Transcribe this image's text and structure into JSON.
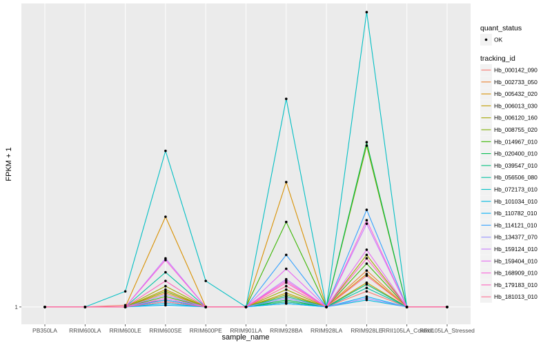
{
  "chart_data": {
    "type": "line",
    "title": "",
    "xlabel": "sample_name",
    "ylabel": "FPKM + 1",
    "y_tick_labels": [
      "1"
    ],
    "ylim": [
      0.9,
      2.75
    ],
    "grid": true,
    "categories": [
      "PB350LA",
      "RRIM600LA",
      "RRIM600LE",
      "RRIM600SE",
      "RRIM600PE",
      "RRIM901LA",
      "RRIM928BA",
      "RRIM928LA",
      "RRIM928LE",
      "RRII105LA_Control",
      "RRII105LA_Stressed"
    ],
    "legend_position": "right",
    "legend_shape": {
      "title": "quant_status",
      "entries": [
        {
          "label": "OK",
          "shape": "point",
          "color": "#000000"
        }
      ]
    },
    "legend_color": {
      "title": "tracking_id",
      "entries": [
        {
          "label": "Hb_000142_090",
          "color": "#F8766D"
        },
        {
          "label": "Hb_002733_050",
          "color": "#EA8331"
        },
        {
          "label": "Hb_005432_020",
          "color": "#D89000"
        },
        {
          "label": "Hb_006013_030",
          "color": "#C09B00"
        },
        {
          "label": "Hb_006120_160",
          "color": "#A3A500"
        },
        {
          "label": "Hb_008755_020",
          "color": "#7CAE00"
        },
        {
          "label": "Hb_014967_010",
          "color": "#39B600"
        },
        {
          "label": "Hb_020400_010",
          "color": "#00BB4E"
        },
        {
          "label": "Hb_039547_010",
          "color": "#00BF7D"
        },
        {
          "label": "Hb_056506_080",
          "color": "#00C1A3"
        },
        {
          "label": "Hb_072173_010",
          "color": "#00BFC4"
        },
        {
          "label": "Hb_101034_010",
          "color": "#00BAE0"
        },
        {
          "label": "Hb_110782_010",
          "color": "#00B0F6"
        },
        {
          "label": "Hb_114121_010",
          "color": "#35A2FF"
        },
        {
          "label": "Hb_134377_070",
          "color": "#9590FF"
        },
        {
          "label": "Hb_159124_010",
          "color": "#C77CFF"
        },
        {
          "label": "Hb_159404_010",
          "color": "#E76BF3"
        },
        {
          "label": "Hb_168909_010",
          "color": "#FA62DB"
        },
        {
          "label": "Hb_179183_010",
          "color": "#FF62BC"
        },
        {
          "label": "Hb_181013_010",
          "color": "#FF6C91"
        }
      ]
    },
    "series": [
      {
        "values": [
          1,
          1,
          1.01,
          1.04,
          1,
          1,
          1.03,
          1,
          1.09,
          1.0,
          1
        ]
      },
      {
        "values": [
          1,
          1,
          1.0,
          1.08,
          1,
          1,
          1.06,
          1,
          1.21,
          1.0,
          1
        ]
      },
      {
        "values": [
          1,
          1,
          1.0,
          1.52,
          1,
          1,
          1.72,
          1,
          1.19,
          1.0,
          1
        ]
      },
      {
        "values": [
          1,
          1,
          1.0,
          1.1,
          1,
          1,
          1.08,
          1,
          1.14,
          1.0,
          1
        ]
      },
      {
        "values": [
          1,
          1,
          1.0,
          1.12,
          1,
          1,
          1.1,
          1,
          1.3,
          1.0,
          1
        ]
      },
      {
        "values": [
          1,
          1,
          1.0,
          1.09,
          1,
          1,
          1.07,
          1,
          1.93,
          1.0,
          1
        ]
      },
      {
        "values": [
          1,
          1,
          1.0,
          1.06,
          1,
          1,
          1.49,
          1,
          1.25,
          1.0,
          1
        ]
      },
      {
        "values": [
          1,
          1,
          1.0,
          1.04,
          1,
          1,
          1.04,
          1,
          1.95,
          1.0,
          1
        ]
      },
      {
        "values": [
          1,
          1,
          1.0,
          1.03,
          1,
          1,
          1.03,
          1,
          1.13,
          1.0,
          1
        ]
      },
      {
        "values": [
          1,
          1,
          1.0,
          1.2,
          1,
          1,
          1.06,
          1,
          1.11,
          1.0,
          1
        ]
      },
      {
        "values": [
          1,
          1,
          1.09,
          1.9,
          1.15,
          1,
          2.2,
          1,
          2.7,
          1.0,
          1
        ]
      },
      {
        "values": [
          1,
          1,
          1.0,
          1.02,
          1,
          1,
          1.02,
          1,
          1.04,
          1.0,
          1
        ]
      },
      {
        "values": [
          1,
          1,
          1.0,
          1.01,
          1,
          1,
          1.02,
          1,
          1.06,
          1.0,
          1
        ]
      },
      {
        "values": [
          1,
          1,
          1.0,
          1.04,
          1,
          1,
          1.3,
          1,
          1.56,
          1.0,
          1
        ]
      },
      {
        "values": [
          1,
          1,
          1.0,
          1.07,
          1,
          1,
          1.05,
          1,
          1.05,
          1.0,
          1
        ]
      },
      {
        "values": [
          1,
          1,
          1.0,
          1.28,
          1,
          1,
          1.16,
          1,
          1.48,
          1.0,
          1
        ]
      },
      {
        "values": [
          1,
          1,
          1.0,
          1.05,
          1,
          1,
          1.22,
          1,
          1.33,
          1.0,
          1
        ]
      },
      {
        "values": [
          1,
          1,
          1.0,
          1.27,
          1,
          1,
          1.15,
          1,
          1.5,
          1.0,
          1
        ]
      },
      {
        "values": [
          1,
          1,
          1.0,
          1.15,
          1,
          1,
          1.14,
          1,
          1.28,
          1.0,
          1
        ]
      },
      {
        "values": [
          1,
          1,
          1.0,
          1.03,
          1,
          1,
          1.12,
          1,
          1.18,
          1.0,
          1
        ]
      }
    ]
  }
}
